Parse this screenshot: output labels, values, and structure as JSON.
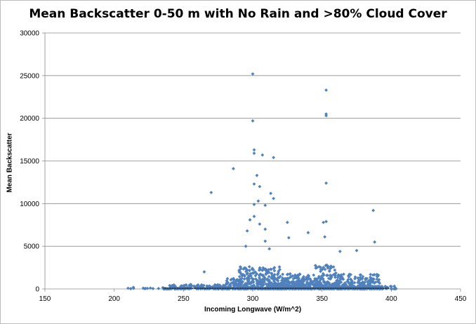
{
  "chart_data": {
    "type": "scatter",
    "title": "Mean Backscatter 0-50 m with No Rain and >80% Cloud Cover",
    "xlabel": "Incoming Longwave (W/m^2)",
    "ylabel": "Mean Backscatter",
    "xlim": [
      150,
      450
    ],
    "ylim": [
      0,
      30000
    ],
    "x_ticks": [
      "150",
      "200",
      "250",
      "300",
      "350",
      "400",
      "450"
    ],
    "y_ticks": [
      "0",
      "5000",
      "10000",
      "15000",
      "20000",
      "25000",
      "30000"
    ],
    "grid": "horizontal",
    "legend": "none",
    "marker_color": "#4f81bd",
    "outliers": [
      [
        300,
        25200
      ],
      [
        353,
        23300
      ],
      [
        353,
        20500
      ],
      [
        353,
        20300
      ],
      [
        300,
        19700
      ],
      [
        301,
        16300
      ],
      [
        301,
        15900
      ],
      [
        307,
        15700
      ],
      [
        315,
        15400
      ],
      [
        286,
        14100
      ],
      [
        303,
        13300
      ],
      [
        353,
        12400
      ],
      [
        301,
        12300
      ],
      [
        305,
        12000
      ],
      [
        270,
        11300
      ],
      [
        313,
        11200
      ],
      [
        315,
        10600
      ],
      [
        304,
        10300
      ],
      [
        301,
        9900
      ],
      [
        309,
        9800
      ],
      [
        387,
        9200
      ],
      [
        301,
        8500
      ],
      [
        298,
        8100
      ],
      [
        353,
        7900
      ],
      [
        351,
        7800
      ],
      [
        325,
        7800
      ],
      [
        305,
        7600
      ],
      [
        309,
        7000
      ],
      [
        296,
        6800
      ],
      [
        340,
        6600
      ],
      [
        352,
        6100
      ],
      [
        326,
        6000
      ],
      [
        309,
        5600
      ],
      [
        388,
        5500
      ],
      [
        295,
        5000
      ],
      [
        312,
        4700
      ],
      [
        375,
        4500
      ],
      [
        363,
        4400
      ],
      [
        265,
        2000
      ]
    ]
  }
}
